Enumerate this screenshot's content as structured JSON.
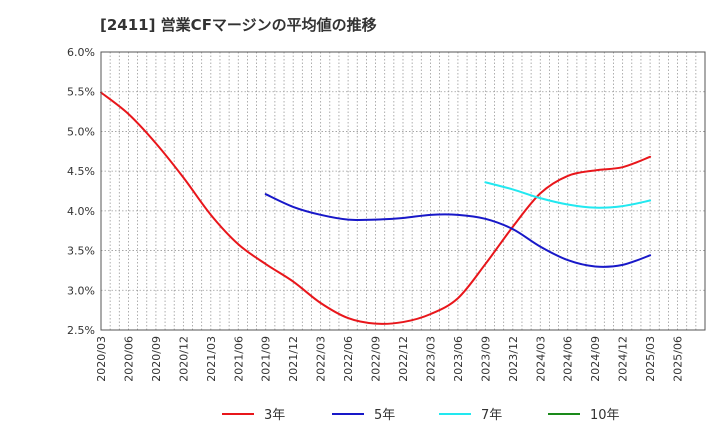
{
  "title": "[2411]  営業CFマージンの平均値の推移",
  "chart_data": {
    "type": "line",
    "title": "[2411]  営業CFマージンの平均値の推移",
    "ylim": [
      2.5,
      6.0
    ],
    "yticks": [
      "6.0%",
      "5.5%",
      "5.0%",
      "4.5%",
      "4.0%",
      "3.5%",
      "3.0%",
      "2.5%"
    ],
    "xlabels": [
      "2020/03",
      "2020/06",
      "2020/09",
      "2020/12",
      "2021/03",
      "2021/06",
      "2021/09",
      "2021/12",
      "2022/03",
      "2022/06",
      "2022/09",
      "2022/12",
      "2023/03",
      "2023/06",
      "2023/09",
      "2023/12",
      "2024/03",
      "2024/06",
      "2024/09",
      "2024/12",
      "2025/03",
      "2025/06"
    ],
    "grid": true,
    "legend_position": "bottom",
    "series": [
      {
        "name": "3年",
        "color": "#e8161b",
        "x": [
          "2020/03",
          "2020/06",
          "2020/09",
          "2020/12",
          "2021/03",
          "2021/06",
          "2021/09",
          "2021/12",
          "2022/03",
          "2022/06",
          "2022/09",
          "2022/12",
          "2023/03",
          "2023/06",
          "2023/09",
          "2023/12",
          "2024/03",
          "2024/06",
          "2024/09",
          "2024/12",
          "2025/03"
        ],
        "values": [
          5.49,
          5.22,
          4.85,
          4.42,
          3.95,
          3.58,
          3.33,
          3.11,
          2.84,
          2.65,
          2.58,
          2.6,
          2.7,
          2.9,
          3.33,
          3.8,
          4.22,
          4.44,
          4.51,
          4.55,
          4.68
        ]
      },
      {
        "name": "5年",
        "color": "#1818c8",
        "x": [
          "2021/09",
          "2021/12",
          "2022/03",
          "2022/06",
          "2022/09",
          "2022/12",
          "2023/03",
          "2023/06",
          "2023/09",
          "2023/12",
          "2024/03",
          "2024/06",
          "2024/09",
          "2024/12",
          "2025/03"
        ],
        "values": [
          4.21,
          4.05,
          3.95,
          3.89,
          3.89,
          3.91,
          3.95,
          3.95,
          3.9,
          3.77,
          3.55,
          3.38,
          3.3,
          3.32,
          3.44
        ]
      },
      {
        "name": "7年",
        "color": "#22e8f0",
        "x": [
          "2023/09",
          "2023/12",
          "2024/03",
          "2024/06",
          "2024/09",
          "2024/12",
          "2025/03"
        ],
        "values": [
          4.36,
          4.27,
          4.16,
          4.08,
          4.04,
          4.06,
          4.13
        ]
      },
      {
        "name": "10年",
        "color": "#1a8a1a",
        "x": [],
        "values": []
      }
    ]
  }
}
